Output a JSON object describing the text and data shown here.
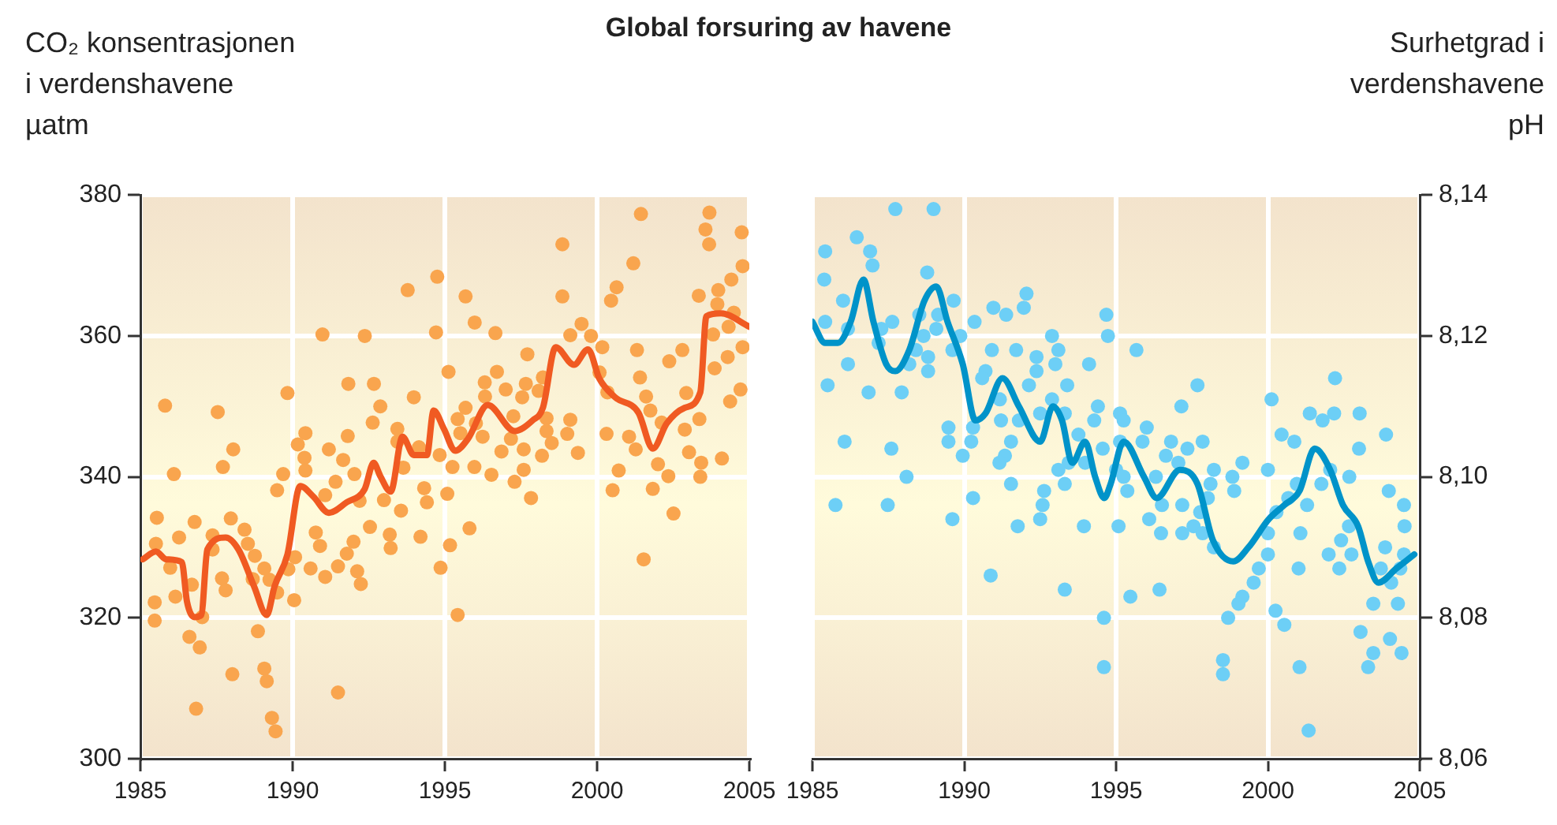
{
  "chart_data": [
    {
      "type": "scatter",
      "title": "Global forsuring av havene",
      "ylabel": "CO₂ konsentrasjonen\ni verdenshavene\nµatm",
      "xlim": [
        1985,
        2005
      ],
      "xticks": [
        1985,
        1990,
        1995,
        2000,
        2005
      ],
      "ylim": [
        300,
        380
      ],
      "yticks": [
        300,
        320,
        340,
        360,
        380
      ],
      "grid": true,
      "series": [
        {
          "type": "scatter",
          "color": "#f9a54e",
          "marker": "circle",
          "x": [
            1985.81,
            1987.54,
            1988.05,
            1987.71,
            1986.1,
            1989.83,
            1989.69,
            1989.49,
            1985.54,
            1985.51,
            1986.27,
            1986.78,
            1987.97,
            1987.37,
            1988.42,
            1988.53,
            1988.76,
            1987.37,
            1985.98,
            1986.69,
            1987.68,
            1987.8,
            1989.07,
            1989.24,
            1988.69,
            1989.49,
            1990.05,
            1990.08,
            1989.86,
            1985.47,
            1985.47,
            1986.15,
            1986.61,
            1986.95,
            1987.03,
            1988.86,
            1988.02,
            1989.07,
            1989.15,
            1986.83,
            1989.32,
            1989.44,
            1990.42,
            1990.17,
            1990.39,
            1990.42,
            1991.19,
            1991.66,
            1991.41,
            1992.03,
            1991.81,
            1991.83,
            1992.67,
            1992.88,
            1992.63,
            1993.44,
            1993.98,
            1993.78,
            1994.75,
            1990.98,
            1992.37,
            1994.71,
            1990.76,
            1990.9,
            1990.59,
            1991.07,
            1991.49,
            1991.78,
            1992,
            1992.12,
            1992.24,
            1992.54,
            1993.19,
            1993.22,
            1994.2,
            1993.56,
            1993,
            1994.32,
            1994.41,
            1992.2,
            1991.07,
            1993.44,
            1994.15,
            1993.64,
            1994.86,
            1991.49,
            1994.83,
            1995.68,
            1995.98,
            1996.66,
            1997.71,
            1998.86,
            1998.86,
            1995.12,
            1996.71,
            1996.31,
            1997,
            1996.32,
            1997.66,
            1997.54,
            1998.22,
            1998.08,
            1995.68,
            1995.42,
            1996.02,
            1996.24,
            1995.51,
            1997.25,
            1997.17,
            1996.86,
            1997.59,
            1998.34,
            1998.34,
            1998.51,
            1998.19,
            1999.12,
            1999.02,
            1999.37,
            1997.59,
            1997.29,
            1996.53,
            1995.97,
            1995.25,
            1997.83,
            1995.08,
            1995.81,
            1995.17,
            1995.42,
            1999.49,
            1999.12,
            1999.8,
            2000.17,
            2000.34,
            2000.08,
            2000.31,
            2001.05,
            2001.27,
            2000.71,
            2000.51,
            2001.83,
            2002,
            2002.34,
            2002.51,
            2001.53,
            2001.44,
            2001.19,
            2000.64,
            2000.46,
            2003.34,
            2003.56,
            2003.69,
            2003.68,
            2004.75,
            2004.78,
            2004.41,
            2003.98,
            2003.95,
            2004.49,
            2003.81,
            2004.32,
            2004.78,
            2004.29,
            2003.86,
            2002.8,
            2002.37,
            2001.31,
            2001.41,
            2001.61,
            2001.75,
            2002.12,
            2002.88,
            2002.93,
            2003.36,
            2003.02,
            2003.42,
            2003.39,
            2004.1,
            2004.37,
            2004.71
          ],
          "values": [
            350.1,
            349.2,
            343.9,
            341.4,
            340.4,
            351.9,
            340.4,
            338.1,
            334.2,
            330.5,
            331.4,
            333.6,
            334.1,
            331.7,
            332.5,
            330.5,
            328.8,
            329.7,
            327.1,
            324.7,
            325.6,
            323.9,
            327,
            325.4,
            325.5,
            323.6,
            322.5,
            328.6,
            326.9,
            322.2,
            319.6,
            323,
            317.3,
            315.8,
            320.1,
            318.1,
            312,
            312.8,
            311,
            307.1,
            305.8,
            303.9,
            346.2,
            344.6,
            342.7,
            340.9,
            343.9,
            342.4,
            339.3,
            340.4,
            345.8,
            353.2,
            353.2,
            350,
            347.7,
            346.8,
            351.3,
            366.5,
            368.4,
            360.2,
            360,
            360.5,
            332.1,
            330.2,
            327,
            325.8,
            327.3,
            329.1,
            330.8,
            326.6,
            324.8,
            332.9,
            331.8,
            329.9,
            331.5,
            335.2,
            336.7,
            338.4,
            336.4,
            336.6,
            337.4,
            345,
            344.2,
            341.3,
            327.1,
            309.4,
            343.1,
            365.6,
            361.9,
            360.4,
            357.4,
            373,
            365.6,
            354.9,
            354.9,
            353.4,
            352.4,
            351.4,
            353.2,
            351.3,
            354.1,
            352.2,
            349.8,
            348.2,
            347.6,
            345.7,
            346.2,
            348.6,
            345.4,
            343.6,
            343.9,
            348.3,
            346.5,
            344.8,
            343,
            348.1,
            346.1,
            343.4,
            341,
            339.3,
            340.3,
            341.4,
            341.4,
            337,
            337.6,
            332.7,
            330.3,
            320.4,
            361.7,
            360.1,
            360,
            358.4,
            352,
            354.8,
            346.1,
            345.7,
            343.9,
            340.9,
            338.1,
            338.3,
            341.8,
            340.1,
            334.8,
            328.3,
            377.3,
            370.3,
            366.9,
            365,
            365.7,
            375.1,
            377.5,
            373,
            374.7,
            369.9,
            368,
            366.5,
            364.5,
            363.3,
            360.2,
            361.3,
            358.4,
            357,
            355.4,
            358,
            356.4,
            358,
            354.1,
            351.4,
            349.4,
            347.7,
            346.7,
            351.9,
            348.2,
            343.5,
            342,
            340,
            342.6,
            350.7,
            352.4
          ]
        },
        {
          "type": "line",
          "color": "#f05a22",
          "marker": "none",
          "x": [
            1985.08,
            1985.51,
            1985.85,
            1986.36,
            1986.53,
            1986.78,
            1987,
            1987.2,
            1987.8,
            1988.22,
            1988.73,
            1989.15,
            1989.41,
            1989.83,
            1990.25,
            1990.68,
            1991.19,
            1991.78,
            1992.37,
            1992.66,
            1992.88,
            1993.22,
            1993.61,
            1993.98,
            1994.41,
            1994.63,
            1994.97,
            1995.34,
            1995.76,
            1996.41,
            1997.29,
            1997.88,
            1998.22,
            1998.64,
            1999.24,
            1999.7,
            2000.08,
            2000.59,
            2001.36,
            2001.83,
            2002.29,
            2002.88,
            2003.39,
            2003.59,
            2004.07,
            2005
          ],
          "values": [
            328.3,
            329.4,
            328.3,
            327.9,
            322.3,
            320.1,
            320.4,
            329.7,
            331.4,
            329.7,
            324.5,
            320.4,
            324.5,
            329,
            338.7,
            337.2,
            334.9,
            336.4,
            338.3,
            342,
            340.1,
            337.9,
            345.7,
            343.1,
            343.1,
            349.4,
            346.8,
            343.7,
            345.4,
            350.2,
            346.5,
            348,
            349.8,
            358.4,
            355.9,
            358.1,
            353.9,
            351.3,
            349.1,
            344,
            347.6,
            349.8,
            352,
            362.8,
            363.2,
            361.3
          ]
        }
      ]
    },
    {
      "type": "scatter",
      "y2label": "Surhetgrad i\nverdenshavene\npH",
      "xlim": [
        1985,
        2005
      ],
      "xticks": [
        1985,
        1990,
        1995,
        2000,
        2005
      ],
      "y2lim": [
        8.06,
        8.14
      ],
      "y2ticks": [
        {
          "value": 8.06,
          "label": "8,06"
        },
        {
          "value": 8.08,
          "label": "8,08"
        },
        {
          "value": 8.1,
          "label": "8,10"
        },
        {
          "value": 8.12,
          "label": "8,12"
        },
        {
          "value": 8.14,
          "label": "8,14"
        }
      ],
      "grid": true,
      "series": [
        {
          "type": "scatter",
          "axis": "y2",
          "color": "#6dcff6",
          "marker": "circle",
          "x": [
            1987.73,
            1988.99,
            1985.42,
            1986.46,
            1986.9,
            1986.98,
            1985.39,
            1988.78,
            1986.01,
            1985.42,
            1986.17,
            1987.27,
            1987.18,
            1987.63,
            1988.52,
            1988.66,
            1989.14,
            1989.08,
            1988.41,
            1988.19,
            1988.81,
            1988.81,
            1986.17,
            1985.5,
            1986.85,
            1987.94,
            1989.65,
            1989.87,
            1989.61,
            1990.34,
            1990.96,
            1991.38,
            1991.96,
            1992.05,
            1992.89,
            1993.1,
            1992.38,
            1993,
            1994.11,
            1990.91,
            1991.71,
            1990.7,
            1992.38,
            1993.39,
            1992.13,
            1990.59,
            1991.17,
            1991.21,
            1991.8,
            1992.5,
            1992.89,
            1993.31,
            1989.48,
            1989.48,
            1990.29,
            1990.23,
            1989.95,
            1991.54,
            1991.34,
            1991.16,
            1993.76,
            1994.28,
            1994.4,
            1994.56,
            1993.98,
            1993.44,
            1993.1,
            1993.31,
            1992.63,
            1992.58,
            1992.5,
            1991.54,
            1990.29,
            1989.61,
            1991.76,
            1993.94,
            1986.06,
            1987.6,
            1988.1,
            1985.76,
            1987.48,
            1990.87,
            1993.31,
            1994.6,
            1994.6,
            1994.68,
            1994.73,
            1995.67,
            1997.68,
            1997.15,
            2000.12,
            2002.21,
            1995.13,
            1995.25,
            1995.13,
            1996.01,
            1995.87,
            1996.81,
            1996.64,
            1997.35,
            1997.85,
            1995,
            1995.25,
            1995.37,
            1996.31,
            1997.05,
            1998.22,
            1998.83,
            1999.16,
            1998.89,
            1998.11,
            1998.02,
            1996.51,
            1996.09,
            1996.48,
            1997.18,
            1997.55,
            1997.18,
            1997.85,
            1997.77,
            1998.22,
            1995.08,
            2000,
            2000.45,
            2000.87,
            2001.38,
            2001.8,
            2002.18,
            2003.02,
            2003,
            2003.89,
            2000.95,
            2000.67,
            2000.28,
            2000,
            2001.29,
            2001.07,
            2001.76,
            2002.05,
            2002.68,
            2003.98,
            2004.48,
            2004.5,
            2003.86,
            2004.48,
            2004.36,
            2003.72,
            2004.06,
            2002.67,
            2002.41,
            2002.75,
            2002,
            2002.35,
            2001.01,
            2000,
            1999.7,
            1999.53,
            1999.16,
            1999.03,
            1998.69,
            1995.47,
            1996.43,
            2000.25,
            2000.54,
            1998.52,
            1998.52,
            2001.04,
            2003.05,
            2004.02,
            2004.4,
            2003.47,
            2003.3,
            2001.34,
            2003.47,
            2004.28
          ],
          "values": [
            8.138,
            8.138,
            8.132,
            8.134,
            8.132,
            8.13,
            8.128,
            8.129,
            8.125,
            8.122,
            8.121,
            8.121,
            8.119,
            8.122,
            8.123,
            8.12,
            8.123,
            8.121,
            8.118,
            8.116,
            8.117,
            8.115,
            8.116,
            8.113,
            8.112,
            8.112,
            8.125,
            8.12,
            8.118,
            8.122,
            8.124,
            8.123,
            8.124,
            8.126,
            8.12,
            8.118,
            8.117,
            8.116,
            8.116,
            8.118,
            8.118,
            8.115,
            8.115,
            8.113,
            8.113,
            8.114,
            8.111,
            8.108,
            8.108,
            8.109,
            8.111,
            8.109,
            8.107,
            8.105,
            8.107,
            8.105,
            8.103,
            8.105,
            8.103,
            8.102,
            8.106,
            8.108,
            8.11,
            8.104,
            8.102,
            8.102,
            8.101,
            8.099,
            8.098,
            8.096,
            8.094,
            8.099,
            8.097,
            8.094,
            8.093,
            8.093,
            8.105,
            8.104,
            8.1,
            8.096,
            8.096,
            8.086,
            8.084,
            8.08,
            8.073,
            8.123,
            8.12,
            8.118,
            8.113,
            8.11,
            8.111,
            8.114,
            8.109,
            8.108,
            8.105,
            8.107,
            8.105,
            8.105,
            8.103,
            8.104,
            8.105,
            8.101,
            8.1,
            8.098,
            8.1,
            8.102,
            8.101,
            8.1,
            8.102,
            8.098,
            8.099,
            8.097,
            8.096,
            8.094,
            8.092,
            8.096,
            8.093,
            8.092,
            8.092,
            8.095,
            8.09,
            8.093,
            8.101,
            8.106,
            8.105,
            8.109,
            8.108,
            8.109,
            8.109,
            8.104,
            8.106,
            8.099,
            8.097,
            8.095,
            8.092,
            8.096,
            8.092,
            8.099,
            8.101,
            8.1,
            8.098,
            8.096,
            8.093,
            8.09,
            8.089,
            8.087,
            8.087,
            8.085,
            8.093,
            8.091,
            8.089,
            8.089,
            8.087,
            8.087,
            8.089,
            8.087,
            8.085,
            8.083,
            8.082,
            8.08,
            8.083,
            8.084,
            8.081,
            8.079,
            8.074,
            8.072,
            8.073,
            8.078,
            8.077,
            8.075,
            8.075,
            8.073,
            8.064,
            8.082,
            8.082
          ]
        },
        {
          "type": "line",
          "axis": "y2",
          "color": "#0093c9",
          "marker": "none",
          "x": [
            1985,
            1985.42,
            1985.84,
            1986.26,
            1986.68,
            1987.01,
            1987.43,
            1987.73,
            1988.19,
            1988.69,
            1989.08,
            1989.45,
            1989.95,
            1990.37,
            1990.7,
            1991.26,
            1991.8,
            1992.5,
            1992.92,
            1993.22,
            1993.56,
            1993.98,
            1994.31,
            1994.61,
            1994.82,
            1995.25,
            1995.92,
            1996.34,
            1997.1,
            1997.68,
            1998.19,
            1998.86,
            1999.36,
            2000.03,
            2000.54,
            2001.04,
            2001.54,
            2002.05,
            2002.47,
            2002.97,
            2003.3,
            2003.64,
            2004.23,
            2004.82
          ],
          "values": [
            8.122,
            8.119,
            8.119,
            8.122,
            8.128,
            8.122,
            8.116,
            8.115,
            8.118,
            8.125,
            8.127,
            8.122,
            8.116,
            8.108,
            8.109,
            8.114,
            8.11,
            8.105,
            8.11,
            8.108,
            8.102,
            8.105,
            8.1,
            8.097,
            8.099,
            8.105,
            8.1,
            8.097,
            8.101,
            8.099,
            8.091,
            8.088,
            8.09,
            8.094,
            8.096,
            8.098,
            8.104,
            8.101,
            8.096,
            8.093,
            8.088,
            8.085,
            8.087,
            8.089
          ]
        }
      ]
    }
  ]
}
